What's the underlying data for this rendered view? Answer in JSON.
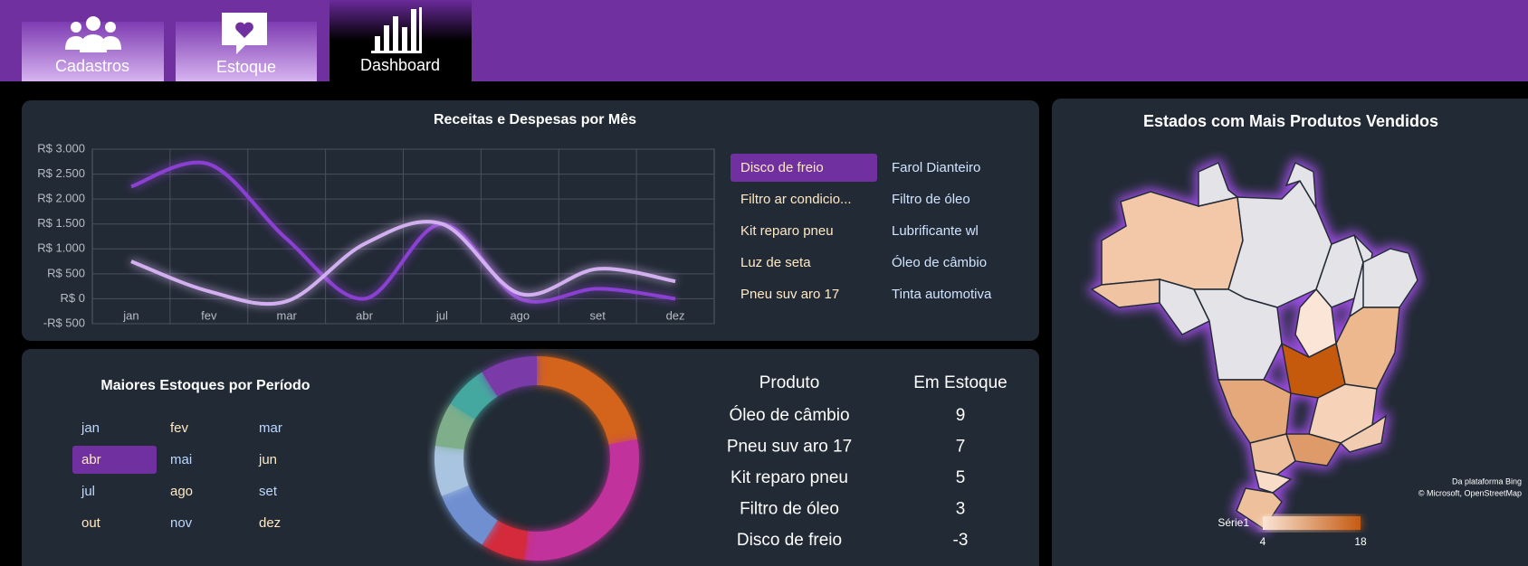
{
  "tabs": [
    "Cadastros",
    "Estoque",
    "Dashboard"
  ],
  "chart_data": [
    {
      "type": "line",
      "title": "Receitas e Despesas por Mês",
      "categories": [
        "jan",
        "fev",
        "mar",
        "abr",
        "jul",
        "ago",
        "set",
        "dez"
      ],
      "series": [
        {
          "color": "#8a3fd0",
          "values": [
            2250,
            2700,
            1200,
            0,
            1500,
            0,
            200,
            0
          ]
        },
        {
          "color": "#d2b0f0",
          "values": [
            750,
            150,
            -50,
            1100,
            1500,
            100,
            600,
            350
          ]
        }
      ],
      "ylim": [
        -500,
        3000
      ],
      "yticks": [
        {
          "value": -500,
          "label": "-R$ 500"
        },
        {
          "value": 0,
          "label": "R$ 0"
        },
        {
          "value": 500,
          "label": "R$ 500"
        },
        {
          "value": 1000,
          "label": "R$ 1.000"
        },
        {
          "value": 1500,
          "label": "R$ 1.500"
        },
        {
          "value": 2000,
          "label": "R$ 2.000"
        },
        {
          "value": 2500,
          "label": "R$ 2.500"
        },
        {
          "value": 3000,
          "label": "R$ 3.000"
        }
      ],
      "grid": true
    },
    {
      "type": "donut",
      "values": [
        22,
        30,
        7,
        10,
        8,
        7,
        7,
        9
      ],
      "colors": [
        "#d4641c",
        "#c2309c",
        "#d42a3a",
        "#6f8fd0",
        "#a8c4e0",
        "#7fae8a",
        "#45a8a0",
        "#7a3aa8"
      ]
    }
  ],
  "products_slicer": [
    {
      "label": "Disco de freio",
      "selected": true
    },
    {
      "label": "Farol Dianteiro",
      "selected": false
    },
    {
      "label": "Filtro ar condicio...",
      "selected": false
    },
    {
      "label": "Filtro de óleo",
      "selected": false
    },
    {
      "label": "Kit reparo pneu",
      "selected": false
    },
    {
      "label": "Lubrificante wl",
      "selected": false
    },
    {
      "label": "Luz de seta",
      "selected": false
    },
    {
      "label": "Óleo de câmbio",
      "selected": false
    },
    {
      "label": "Pneu suv aro 17",
      "selected": false
    },
    {
      "label": "Tinta automotiva",
      "selected": false
    }
  ],
  "months_slicer": {
    "title": "Maiores Estoques por Período",
    "items": [
      {
        "label": "jan",
        "selected": false
      },
      {
        "label": "fev",
        "selected": false
      },
      {
        "label": "mar",
        "selected": false
      },
      {
        "label": "abr",
        "selected": true
      },
      {
        "label": "mai",
        "selected": false
      },
      {
        "label": "jun",
        "selected": false
      },
      {
        "label": "jul",
        "selected": false
      },
      {
        "label": "ago",
        "selected": false
      },
      {
        "label": "set",
        "selected": false
      },
      {
        "label": "out",
        "selected": false
      },
      {
        "label": "nov",
        "selected": false
      },
      {
        "label": "dez",
        "selected": false
      }
    ]
  },
  "stock_table": {
    "headers": [
      "Produto",
      "Em Estoque"
    ],
    "rows": [
      [
        "Óleo de câmbio",
        9
      ],
      [
        "Pneu suv aro 17",
        7
      ],
      [
        "Kit reparo pneu",
        5
      ],
      [
        "Filtro de óleo",
        3
      ],
      [
        "Disco de freio",
        -3
      ]
    ]
  },
  "map": {
    "title": "Estados com Mais Produtos Vendidos",
    "attribution": [
      "Da plataforma Bing",
      "© Microsoft, OpenStreetMap"
    ],
    "legend_label": "Série1",
    "scale_min": 4,
    "scale_max": 18
  }
}
